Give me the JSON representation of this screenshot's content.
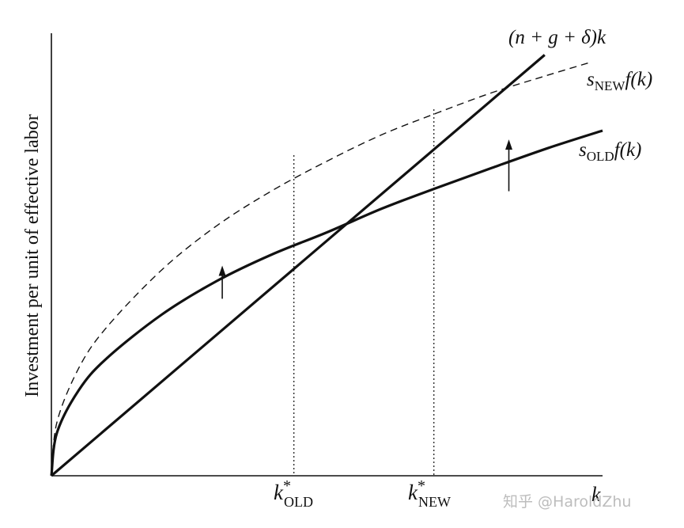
{
  "chart_data": {
    "type": "line",
    "title": "",
    "ylabel": "Investment per unit of effective labor",
    "xlabel": "k",
    "xlim": [
      0,
      1.0
    ],
    "ylim": [
      0,
      1.0
    ],
    "grid": false,
    "series": [
      {
        "name": "(n + g + δ)k",
        "kind": "line",
        "style": "solid",
        "x": [
          0,
          0.895
        ],
        "y": [
          0,
          0.951
        ]
      },
      {
        "name": "s_OLD f(k)",
        "kind": "curve",
        "style": "solid",
        "x": [
          0,
          0.01,
          0.05,
          0.1,
          0.2,
          0.3,
          0.4,
          0.5,
          0.6,
          0.7,
          0.8,
          0.9,
          1.0
        ],
        "y": [
          0,
          0.097,
          0.194,
          0.265,
          0.364,
          0.44,
          0.5,
          0.55,
          0.604,
          0.651,
          0.696,
          0.74,
          0.78
        ]
      },
      {
        "name": "s_NEW f(k)",
        "kind": "curve",
        "style": "dashed",
        "x": [
          0,
          0.01,
          0.05,
          0.1,
          0.2,
          0.3,
          0.4,
          0.5,
          0.6,
          0.7,
          0.8,
          0.9,
          0.98
        ],
        "y": [
          0,
          0.121,
          0.244,
          0.335,
          0.465,
          0.565,
          0.644,
          0.711,
          0.771,
          0.82,
          0.866,
          0.905,
          0.935
        ]
      }
    ],
    "equilibria": [
      {
        "label_base": "k",
        "label_sup": "*",
        "label_sub": "OLD",
        "x": 0.44,
        "y": 0.467
      },
      {
        "label_base": "k",
        "label_sup": "*",
        "label_sub": "NEW",
        "x": 0.694,
        "y": 0.734
      }
    ],
    "shift_arrows": [
      {
        "x": 0.31,
        "y_from": 0.4,
        "y_to": 0.475
      },
      {
        "x": 0.83,
        "y_from": 0.643,
        "y_to": 0.76
      }
    ],
    "curve_labels": {
      "line": "(n + g + δ)k",
      "new_s": "s",
      "new_sub": "NEW",
      "new_rest": "f(k)",
      "old_s": "s",
      "old_sub": "OLD",
      "old_rest": "f(k)"
    },
    "watermark": "知乎 @HaroldZhu"
  }
}
